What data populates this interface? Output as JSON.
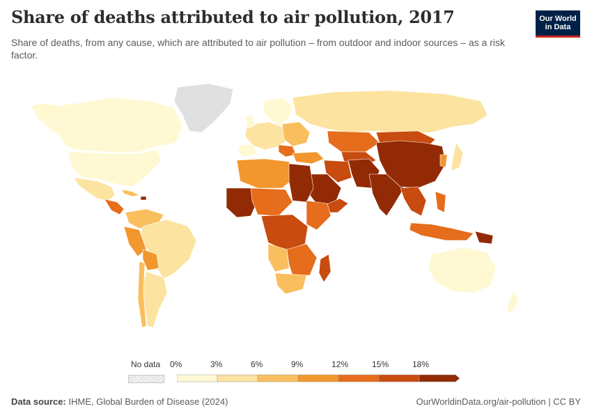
{
  "header": {
    "title": "Share of deaths attributed to air pollution, 2017",
    "subtitle": "Share of deaths, from any cause, which are attributed to air pollution – from outdoor and indoor sources – as a risk factor."
  },
  "logo": {
    "line1": "Our World",
    "line2": "in Data"
  },
  "legend": {
    "no_data_label": "No data",
    "ticks": [
      "0%",
      "3%",
      "6%",
      "9%",
      "12%",
      "15%",
      "18%"
    ],
    "colors": [
      "#fef9d3",
      "#fde3a0",
      "#f9bf5e",
      "#f2962e",
      "#e56d1b",
      "#c84b0f",
      "#922b05"
    ],
    "no_data_color": "#e0e0e0"
  },
  "footer": {
    "source_label": "Data source:",
    "source_text": "IHME, Global Burden of Disease (2024)",
    "credit": "OurWorldinData.org/air-pollution | CC BY"
  },
  "map": {
    "color_scale": {
      "bin_0_3": "#fef9d3",
      "bin_3_6": "#fde3a0",
      "bin_6_9": "#f9bf5e",
      "bin_9_12": "#f2962e",
      "bin_12_15": "#e56d1b",
      "bin_15_18": "#c84b0f",
      "bin_18_plus": "#922b05"
    }
  }
}
